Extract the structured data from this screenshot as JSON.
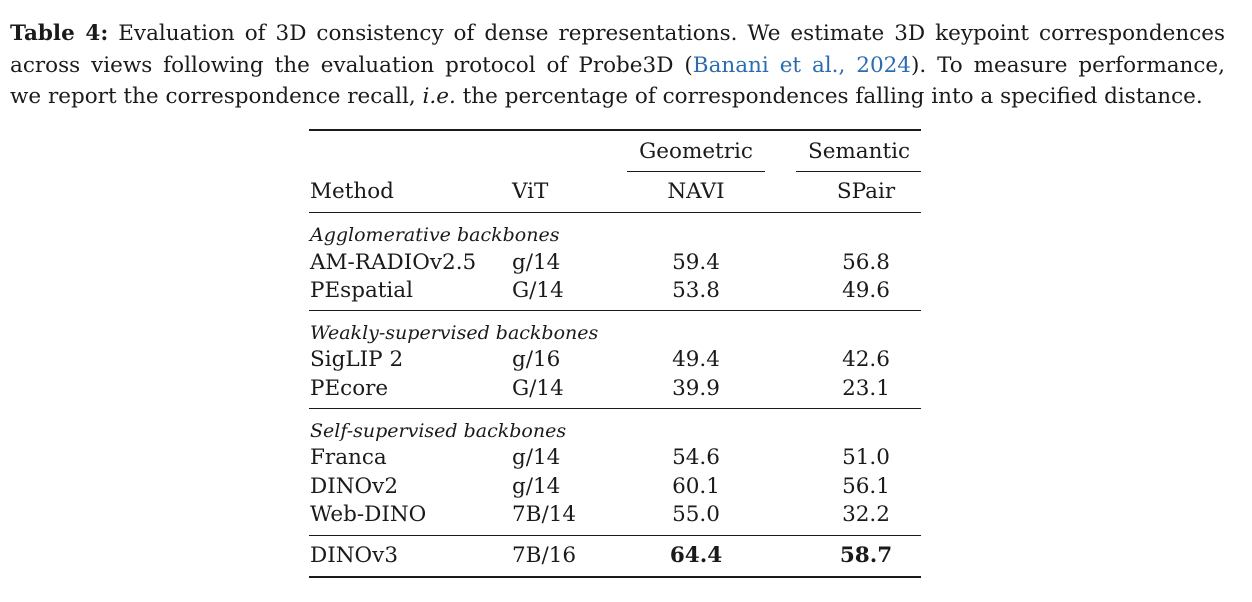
{
  "caption": {
    "label": "Table 4:",
    "line1_rest": "Evaluation of 3D consistency of dense representations. We estimate 3D keypoint correspondences",
    "line2_pre": "across views following the evaluation protocol of Probe3D (",
    "line2_cite": "Banani et al., 2024",
    "line2_post": "). To measure performance,",
    "line3_pre": "we report the correspondence recall,",
    "line3_ie": "i.e.",
    "line3_post": "the percentage of correspondences falling into a specified distance."
  },
  "table": {
    "group_headers": [
      "Geometric",
      "Semantic"
    ],
    "columns": [
      "Method",
      "ViT",
      "NAVI",
      "SPair"
    ],
    "sections": [
      {
        "title": "Agglomerative backbones",
        "rows": [
          {
            "method": "AM-RADIOv2.5",
            "vit": "g/14",
            "navi": "59.4",
            "spair": "56.8"
          },
          {
            "method": "PEspatial",
            "vit": "G/14",
            "navi": "53.8",
            "spair": "49.6"
          }
        ]
      },
      {
        "title": "Weakly-supervised backbones",
        "rows": [
          {
            "method": "SigLIP 2",
            "vit": "g/16",
            "navi": "49.4",
            "spair": "42.6"
          },
          {
            "method": "PEcore",
            "vit": "G/14",
            "navi": "39.9",
            "spair": "23.1"
          }
        ]
      },
      {
        "title": "Self-supervised backbones",
        "rows": [
          {
            "method": "Franca",
            "vit": "g/14",
            "navi": "54.6",
            "spair": "51.0"
          },
          {
            "method": "DINOv2",
            "vit": "g/14",
            "navi": "60.1",
            "spair": "56.1"
          },
          {
            "method": "Web-DINO",
            "vit": "7B/14",
            "navi": "55.0",
            "spair": "32.2"
          }
        ]
      }
    ],
    "final_row": {
      "method": "DINOv3",
      "vit": "7B/16",
      "navi": "64.4",
      "spair": "58.7"
    }
  }
}
